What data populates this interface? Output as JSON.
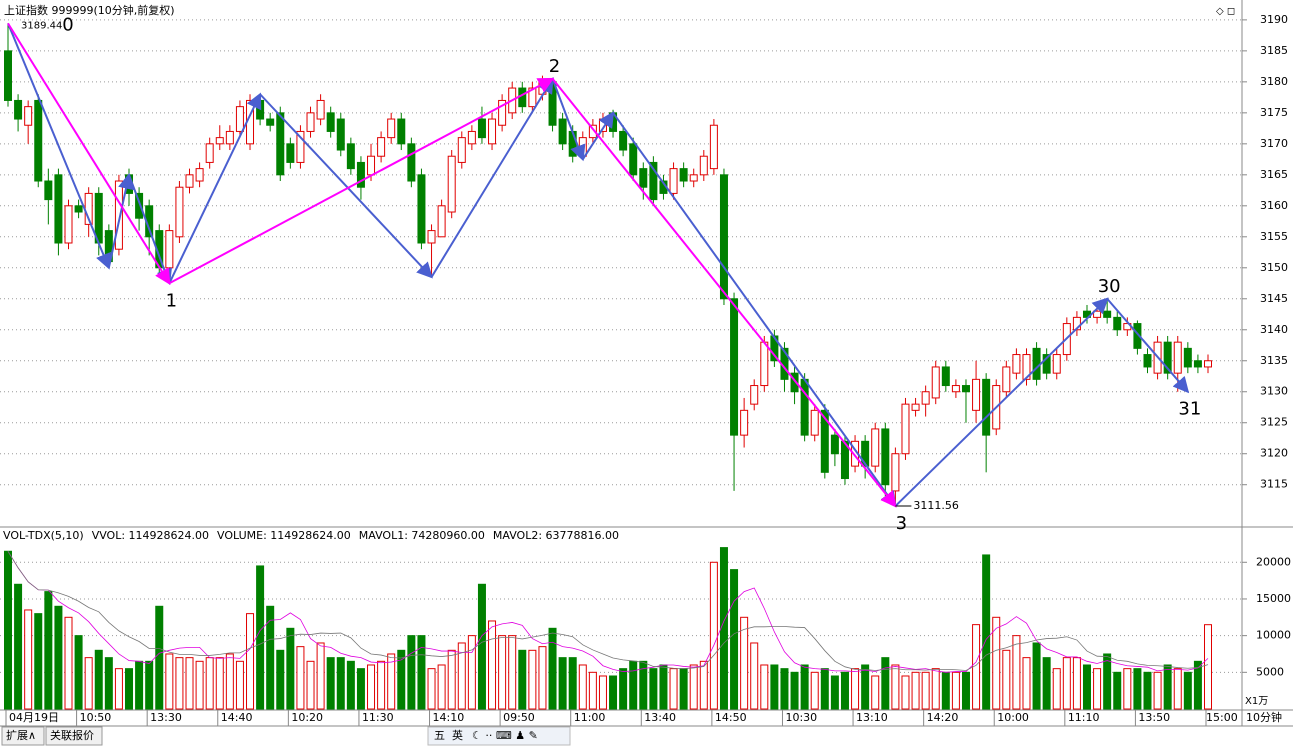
{
  "chart_data": [
    {
      "type": "candlestick",
      "title": "上证指数 999999(10分钟,前复权)",
      "up_color": "#e00000",
      "down_color": "#008000",
      "ylim": [
        3108.5,
        3192.4
      ],
      "yticks": [
        3115,
        3120,
        3125,
        3130,
        3135,
        3140,
        3145,
        3150,
        3155,
        3160,
        3165,
        3170,
        3175,
        3180,
        3185,
        3190
      ],
      "grid": true,
      "categories": [
        "04月19日",
        null,
        null,
        null,
        null,
        null,
        null,
        "10:50",
        null,
        null,
        null,
        null,
        null,
        null,
        "13:30",
        null,
        null,
        null,
        null,
        null,
        null,
        "14:40",
        null,
        null,
        null,
        null,
        null,
        null,
        "10:20",
        null,
        null,
        null,
        null,
        null,
        null,
        "11:30",
        null,
        null,
        null,
        null,
        null,
        null,
        "14:10",
        null,
        null,
        null,
        null,
        null,
        null,
        "09:50",
        null,
        null,
        null,
        null,
        null,
        null,
        "11:00",
        null,
        null,
        null,
        null,
        null,
        null,
        "13:40",
        null,
        null,
        null,
        null,
        null,
        null,
        "14:50",
        null,
        null,
        null,
        null,
        null,
        null,
        "10:30",
        null,
        null,
        null,
        null,
        null,
        null,
        "13:10",
        null,
        null,
        null,
        null,
        null,
        null,
        "14:20",
        null,
        null,
        null,
        null,
        null,
        null,
        "10:00",
        null,
        null,
        null,
        null,
        null,
        null,
        "11:10",
        null,
        null,
        null,
        null,
        null,
        null,
        "13:50",
        null,
        null,
        null,
        null,
        null,
        null,
        "15:00"
      ],
      "ohlc": [
        [
          3185,
          3189.44,
          3176,
          3177
        ],
        [
          3177,
          3178,
          3172,
          3174
        ],
        [
          3173,
          3177,
          3170,
          3176
        ],
        [
          3177,
          3178,
          3163,
          3164
        ],
        [
          3164,
          3166,
          3157,
          3161
        ],
        [
          3165,
          3166,
          3152,
          3154
        ],
        [
          3154,
          3161,
          3153,
          3160
        ],
        [
          3160,
          3161,
          3158,
          3159
        ],
        [
          3157,
          3163,
          3155,
          3162
        ],
        [
          3162,
          3163,
          3152,
          3154
        ],
        [
          3156,
          3157,
          3150,
          3151
        ],
        [
          3153,
          3165,
          3152,
          3164
        ],
        [
          3165,
          3166,
          3160,
          3162
        ],
        [
          3162,
          3163,
          3156,
          3158
        ],
        [
          3160,
          3161,
          3152,
          3155
        ],
        [
          3156,
          3157,
          3149,
          3150
        ],
        [
          3150,
          3157,
          3147.5,
          3156
        ],
        [
          3155,
          3164,
          3154,
          3163
        ],
        [
          3163,
          3166,
          3162,
          3165
        ],
        [
          3164,
          3167,
          3163,
          3166
        ],
        [
          3167,
          3171,
          3166,
          3170
        ],
        [
          3170,
          3173,
          3169,
          3171
        ],
        [
          3170,
          3173,
          3169,
          3172
        ],
        [
          3172,
          3177,
          3171,
          3176
        ],
        [
          3170,
          3178,
          3169,
          3177
        ],
        [
          3177,
          3178,
          3173,
          3174
        ],
        [
          3174,
          3175,
          3172,
          3173
        ],
        [
          3175,
          3176,
          3164,
          3165
        ],
        [
          3170,
          3171,
          3166,
          3167
        ],
        [
          3167,
          3173,
          3166,
          3172
        ],
        [
          3172,
          3176,
          3171,
          3175
        ],
        [
          3174,
          3178,
          3173,
          3177
        ],
        [
          3175,
          3176,
          3171,
          3172
        ],
        [
          3174,
          3175,
          3168,
          3169
        ],
        [
          3170,
          3171,
          3165,
          3166
        ],
        [
          3167,
          3168,
          3161,
          3163
        ],
        [
          3165,
          3170,
          3164,
          3168
        ],
        [
          3168,
          3172,
          3167,
          3171
        ],
        [
          3171,
          3175,
          3170,
          3174
        ],
        [
          3174,
          3175,
          3169,
          3170
        ],
        [
          3170,
          3171,
          3163,
          3164
        ],
        [
          3165,
          3166,
          3153,
          3154
        ],
        [
          3154,
          3157,
          3148.5,
          3156
        ],
        [
          3155,
          3161,
          3155,
          3160
        ],
        [
          3159,
          3169,
          3158,
          3168
        ],
        [
          3167,
          3172,
          3166,
          3171
        ],
        [
          3170,
          3173,
          3169,
          3172
        ],
        [
          3174,
          3176,
          3170,
          3171
        ],
        [
          3170,
          3175,
          3169,
          3174
        ],
        [
          3173,
          3178,
          3172,
          3177
        ],
        [
          3175,
          3180,
          3174,
          3179
        ],
        [
          3179,
          3180,
          3175,
          3176
        ],
        [
          3176,
          3180,
          3175,
          3179
        ],
        [
          3178,
          3181,
          3177,
          3180
        ],
        [
          3180,
          3180.5,
          3172,
          3173
        ],
        [
          3174,
          3175,
          3169,
          3170
        ],
        [
          3172,
          3173,
          3167,
          3168
        ],
        [
          3168,
          3172,
          3167.5,
          3171
        ],
        [
          3171,
          3174,
          3170,
          3173
        ],
        [
          3172,
          3175,
          3171,
          3174
        ],
        [
          3175,
          3175.5,
          3171,
          3172
        ],
        [
          3172,
          3173,
          3168,
          3169
        ],
        [
          3170,
          3171,
          3164,
          3165
        ],
        [
          3166,
          3167,
          3161,
          3163
        ],
        [
          3167,
          3168,
          3160,
          3161
        ],
        [
          3164,
          3165,
          3161,
          3162
        ],
        [
          3162,
          3167,
          3161,
          3166
        ],
        [
          3166,
          3167,
          3163,
          3164
        ],
        [
          3164,
          3166,
          3163,
          3165
        ],
        [
          3165,
          3169,
          3164,
          3168
        ],
        [
          3166,
          3174,
          3165,
          3173
        ],
        [
          3165,
          3166,
          3144,
          3145
        ],
        [
          3145,
          3146,
          3114,
          3123
        ],
        [
          3123,
          3129,
          3121,
          3127
        ],
        [
          3128,
          3132,
          3127,
          3131
        ],
        [
          3131,
          3139,
          3130,
          3138
        ],
        [
          3139,
          3140,
          3134,
          3135
        ],
        [
          3137,
          3138,
          3130,
          3132
        ],
        [
          3133,
          3134,
          3128,
          3130
        ],
        [
          3132,
          3133,
          3122,
          3123
        ],
        [
          3123,
          3128,
          3122,
          3127
        ],
        [
          3127,
          3128,
          3116,
          3117
        ],
        [
          3123,
          3124,
          3118,
          3120
        ],
        [
          3122,
          3123,
          3115,
          3116
        ],
        [
          3118,
          3123,
          3117,
          3122
        ],
        [
          3122,
          3123,
          3116,
          3118
        ],
        [
          3118,
          3125,
          3117,
          3124
        ],
        [
          3124,
          3125,
          3113,
          3115
        ],
        [
          3114,
          3121,
          3111.56,
          3120
        ],
        [
          3120,
          3129,
          3119,
          3128
        ],
        [
          3127,
          3129,
          3126,
          3128
        ],
        [
          3128,
          3131,
          3126,
          3130
        ],
        [
          3129,
          3135,
          3128,
          3134
        ],
        [
          3134,
          3135,
          3130,
          3131
        ],
        [
          3130,
          3132,
          3129,
          3131
        ],
        [
          3131,
          3132,
          3125,
          3130
        ],
        [
          3127,
          3135,
          3125,
          3132
        ],
        [
          3132,
          3133,
          3117,
          3123
        ],
        [
          3124,
          3132,
          3123,
          3131
        ],
        [
          3130,
          3135,
          3129,
          3134
        ],
        [
          3133,
          3137,
          3132,
          3136
        ],
        [
          3132,
          3137,
          3131,
          3136
        ],
        [
          3137,
          3138,
          3131,
          3132
        ],
        [
          3136,
          3137,
          3132,
          3133
        ],
        [
          3133,
          3137,
          3132,
          3136
        ],
        [
          3136,
          3142,
          3135,
          3141
        ],
        [
          3140,
          3143,
          3139,
          3142
        ],
        [
          3143,
          3144,
          3141,
          3142
        ],
        [
          3142,
          3144,
          3141,
          3143
        ],
        [
          3143,
          3145,
          3141,
          3142
        ],
        [
          3142,
          3143,
          3139,
          3140
        ],
        [
          3140,
          3142,
          3139,
          3141
        ],
        [
          3141,
          3141.5,
          3136,
          3137
        ],
        [
          3136,
          3137,
          3133,
          3134
        ],
        [
          3133,
          3139,
          3132,
          3138
        ],
        [
          3138,
          3139,
          3132,
          3133
        ],
        [
          3133,
          3139,
          3130,
          3138
        ],
        [
          3137,
          3138,
          3133,
          3134
        ],
        [
          3135,
          3136,
          3133,
          3134
        ],
        [
          3134,
          3136,
          3133,
          3135
        ]
      ],
      "blue_line": {
        "color": "#4a5fd0",
        "x": [
          0,
          10,
          12,
          16,
          25,
          42,
          54,
          57,
          60,
          88,
          109,
          117
        ],
        "y": [
          3189.44,
          3150,
          3165,
          3147.5,
          3178,
          3148.5,
          3180.5,
          3167.5,
          3175,
          3111.56,
          3145,
          3130
        ]
      },
      "magenta_line": {
        "color": "#ff00ff",
        "x": [
          0,
          16,
          54,
          88
        ],
        "y": [
          3189.44,
          3147.5,
          3180.5,
          3111.56
        ]
      },
      "wave_labels": [
        {
          "text": "0",
          "x": 0,
          "y": 3189.44
        },
        {
          "text": "1",
          "x": 16,
          "y": 3147.5
        },
        {
          "text": "2",
          "x": 54,
          "y": 3180.5
        },
        {
          "text": "3",
          "x": 88,
          "y": 3111.56
        },
        {
          "text": "30",
          "x": 109,
          "y": 3145
        },
        {
          "text": "31",
          "x": 117,
          "y": 3130
        }
      ]
    },
    {
      "type": "volume",
      "legend": [
        "VOL-TDX(5,10)",
        "VVOL: 114928624.00",
        "VOLUME: 114928624.00",
        "MAVOL1: 74280960.00",
        "MAVOL2: 63778816.00"
      ],
      "unit_label": "X1万",
      "period_label": "10分钟",
      "ylim": [
        0,
        24400
      ],
      "yticks": [
        5000,
        10000,
        15000,
        20000
      ],
      "values": [
        21500,
        17000,
        13500,
        13000,
        16000,
        14000,
        12500,
        10000,
        7000,
        8000,
        7000,
        5500,
        5500,
        6500,
        6500,
        14000,
        7500,
        7000,
        7000,
        6500,
        7000,
        7000,
        7500,
        6500,
        13000,
        19500,
        14000,
        8000,
        11000,
        8500,
        6500,
        9000,
        7000,
        7000,
        6500,
        5500,
        6000,
        6500,
        7500,
        8000,
        10000,
        10000,
        5500,
        6000,
        8000,
        9000,
        10000,
        17000,
        12000,
        10000,
        10000,
        8000,
        8000,
        8500,
        11000,
        7000,
        7000,
        6000,
        5000,
        4500,
        4500,
        5500,
        6500,
        6500,
        5500,
        6000,
        5500,
        5500,
        6000,
        6500,
        20000,
        22000,
        19000,
        12500,
        9000,
        6000,
        6000,
        5500,
        5000,
        6000,
        5000,
        5500,
        4500,
        5000,
        5500,
        6000,
        4500,
        7000,
        6000,
        4500,
        5000,
        5000,
        5500,
        5000,
        5000,
        5000,
        11500,
        21000,
        12500,
        8000,
        10000,
        7000,
        9000,
        7000,
        5500,
        7000,
        7000,
        6000,
        5500,
        7500,
        5000,
        5500,
        5500,
        5000,
        5000,
        6000,
        5500,
        5000,
        6500,
        11493
      ]
    }
  ],
  "tabs": [
    "扩展∧",
    "关联报价"
  ],
  "toolbar": [
    "五",
    "英"
  ]
}
